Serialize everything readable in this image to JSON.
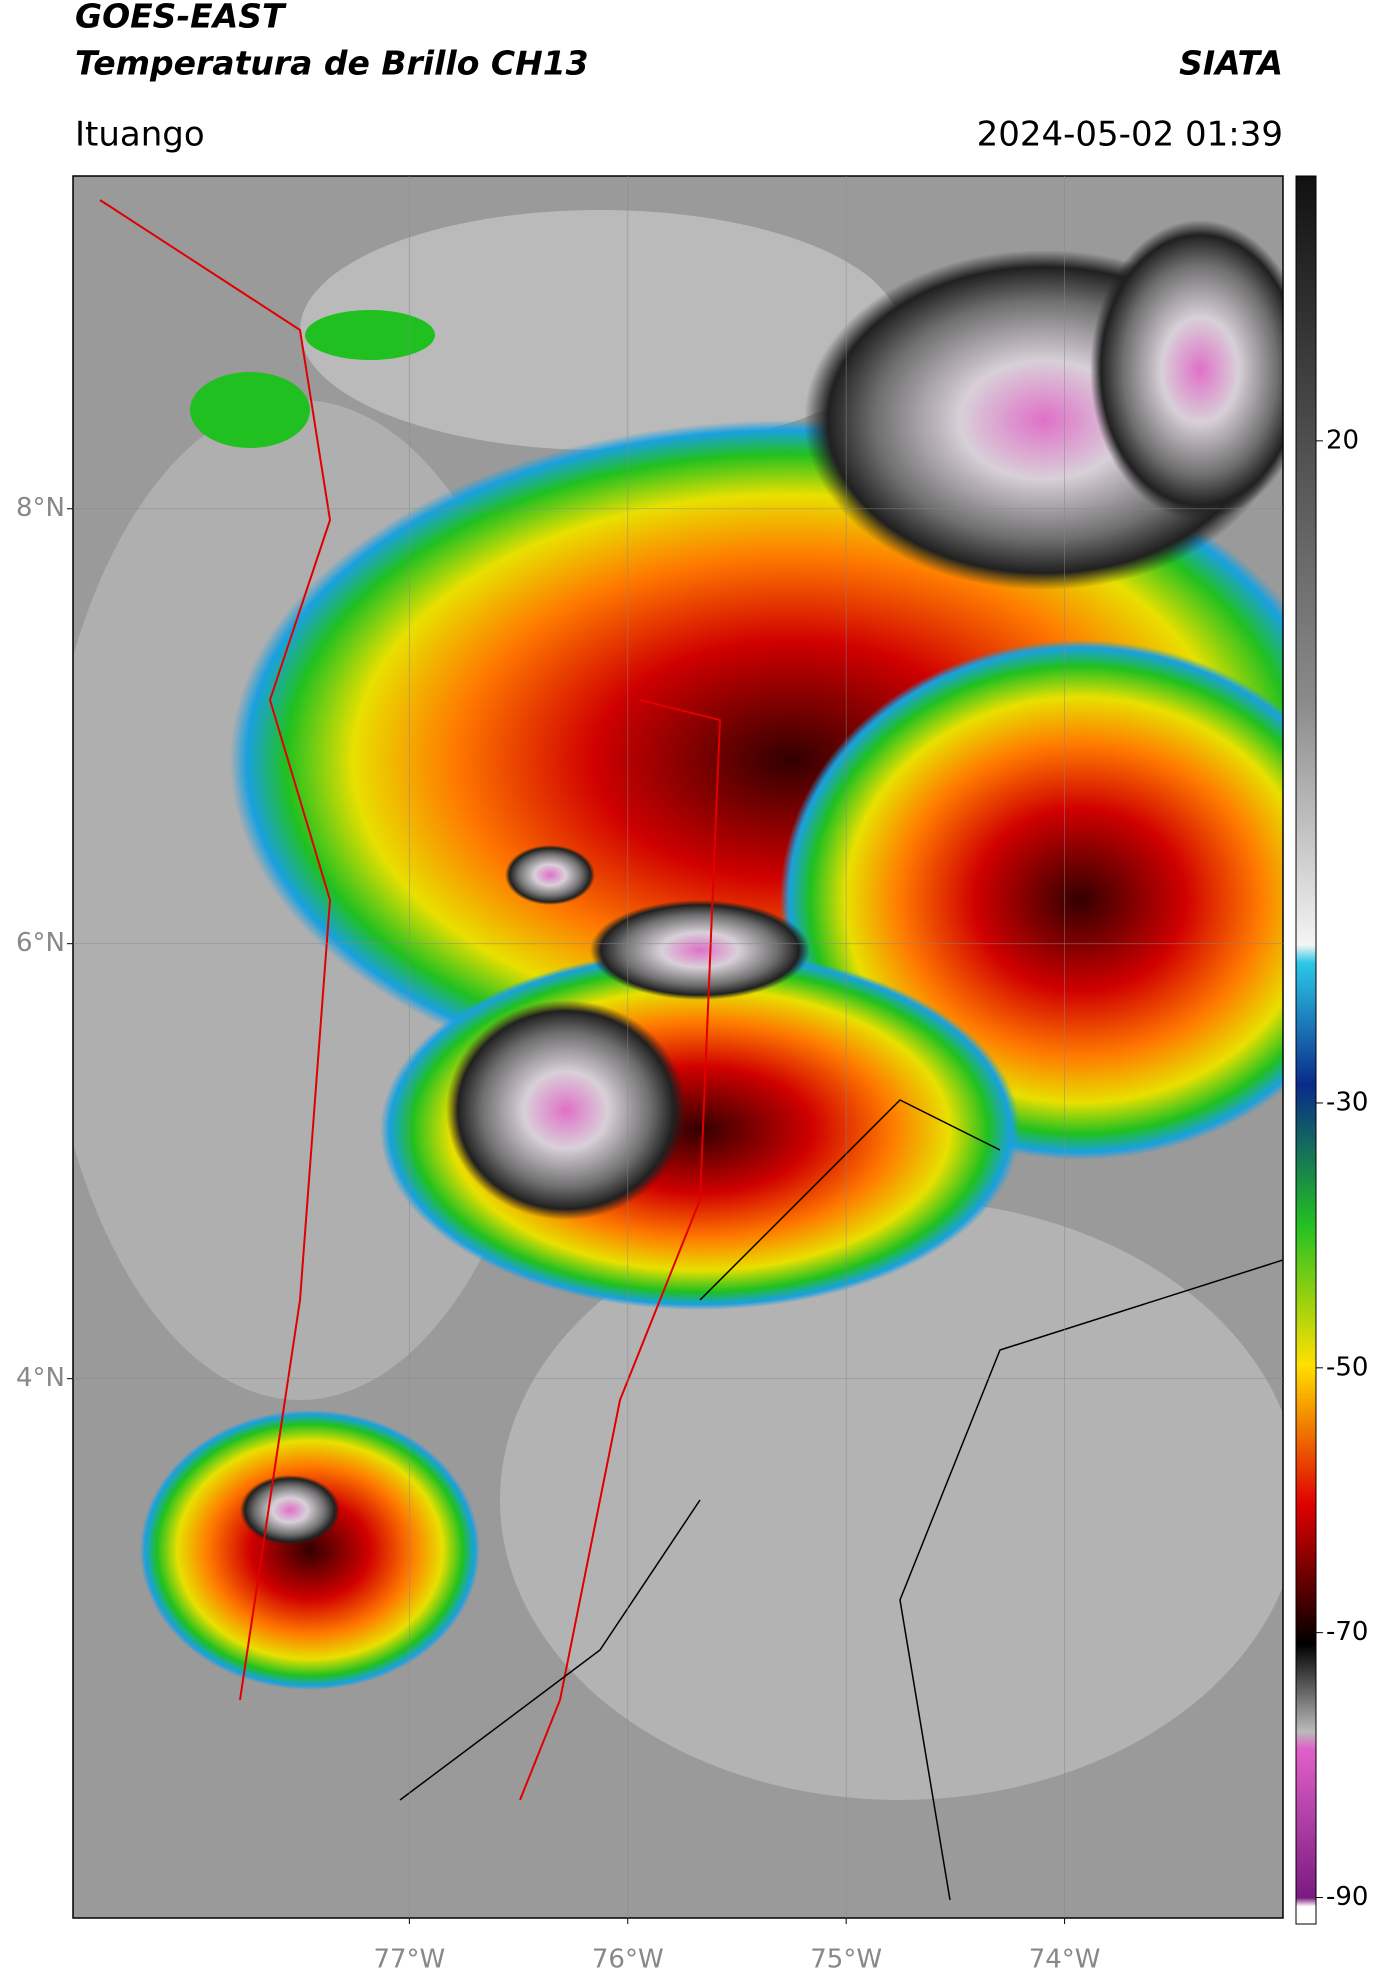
{
  "header": {
    "title": "GOES-EAST",
    "subtitle": "Temperatura de Brillo CH13",
    "source": "SIATA",
    "location": "Ituango",
    "timestamp": "2024-05-02 01:39"
  },
  "chart_data": {
    "type": "map",
    "xlim": [
      -78.54,
      -73.0
    ],
    "ylim": [
      1.52,
      9.53
    ],
    "xticks": [
      {
        "value": -77,
        "label": "77°W"
      },
      {
        "value": -76,
        "label": "76°W"
      },
      {
        "value": -75,
        "label": "75°W"
      },
      {
        "value": -74,
        "label": "74°W"
      }
    ],
    "yticks": [
      {
        "value": 8,
        "label": "8°N"
      },
      {
        "value": 6,
        "label": "6°N"
      },
      {
        "value": 4,
        "label": "4°N"
      }
    ],
    "grid": true,
    "colorbar": {
      "lim": [
        -92,
        40
      ],
      "ticks": [
        20,
        -30,
        -50,
        -70,
        -90
      ]
    }
  }
}
